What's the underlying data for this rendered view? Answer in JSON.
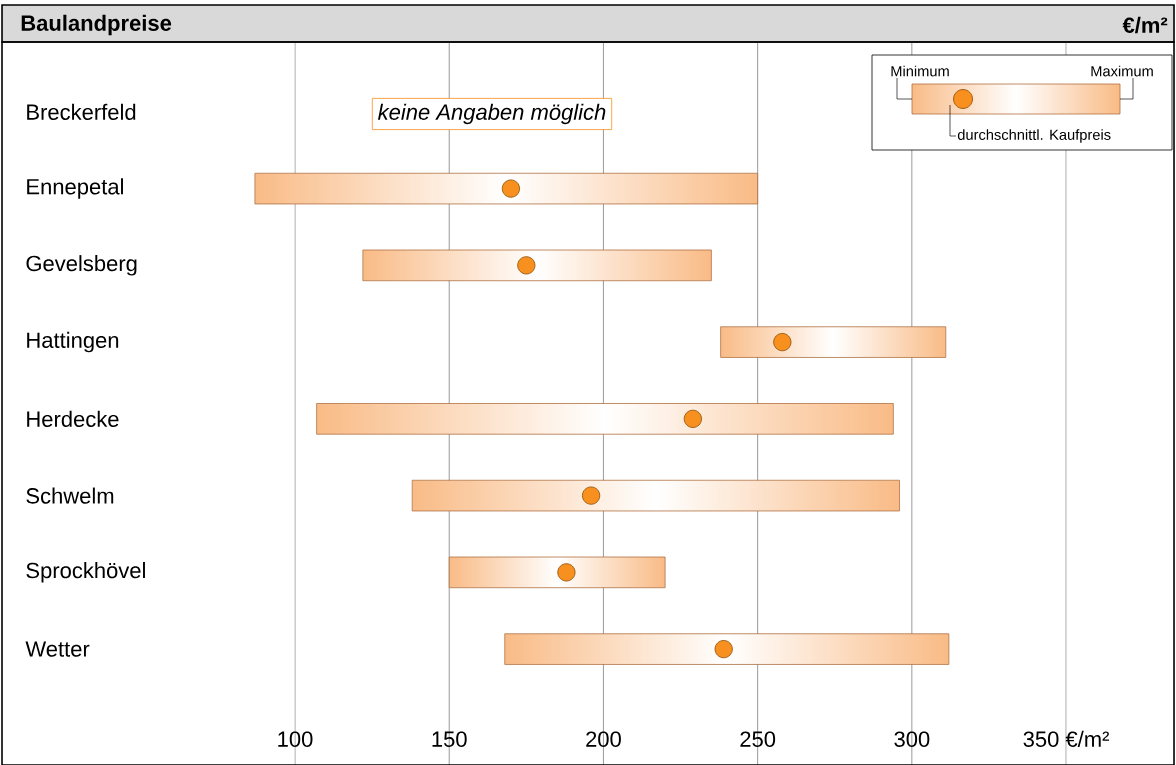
{
  "chart_data": {
    "type": "bar",
    "orientation": "horizontal",
    "title": "Baulandpreise",
    "subtitle": "€/m²",
    "categories": [
      "Breckerfeld",
      "Ennepetal",
      "Gevelsberg",
      "Hattingen",
      "Herdecke",
      "Schwelm",
      "Sprockhövel",
      "Wetter"
    ],
    "series": [
      {
        "type": "bar",
        "color": "#f9bb86",
        "base": [
          null,
          87,
          122,
          238,
          107,
          138,
          150,
          168
        ],
        "values": [
          null,
          163,
          113,
          73,
          187,
          158,
          70,
          144
        ]
      },
      {
        "type": "scatter",
        "color": "#f7901e",
        "marker": "circle",
        "values": [
          null,
          170,
          175,
          258,
          229,
          196,
          188,
          239
        ]
      }
    ],
    "xlim": [
      5,
      385
    ],
    "xticks": [
      100,
      150,
      200,
      250,
      300,
      {
        "value": 350,
        "label": "350 €/m²"
      }
    ],
    "grid": "x",
    "annotations": [
      "keine Angaben möglich",
      "Minimum",
      "Maximum",
      "durchschnittl. Kaufpreis"
    ]
  }
}
